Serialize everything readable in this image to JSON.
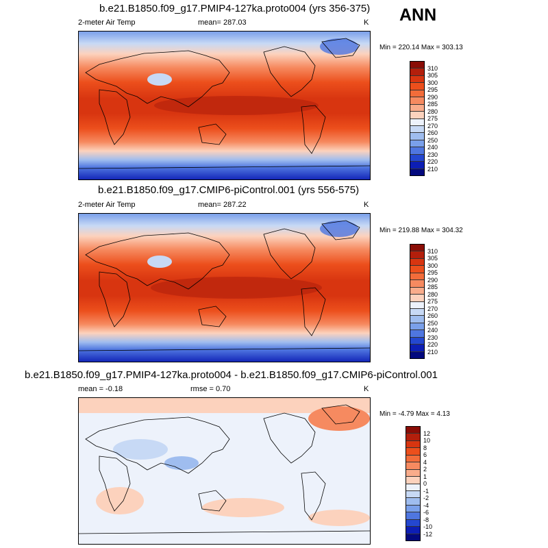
{
  "season": "ANN",
  "panels": [
    {
      "title": "b.e21.B1850.f09_g17.PMIP4-127ka.proto004 (yrs 356-375)",
      "left_label": "2-meter Air Temp",
      "center_label": "mean= 287.03",
      "units": "K",
      "minmax": "Min = 220.14 Max = 303.13",
      "colorbar_labels": [
        "310",
        "305",
        "300",
        "295",
        "290",
        "285",
        "280",
        "275",
        "270",
        "260",
        "250",
        "240",
        "230",
        "220",
        "210"
      ],
      "colorbar_colors": [
        "#8a0d06",
        "#b31f0c",
        "#d83510",
        "#ec4f1c",
        "#f26c3a",
        "#f68a60",
        "#f9ac8b",
        "#fcd2bd",
        "#edf2fb",
        "#c7d9f5",
        "#9fbdef",
        "#7aa0ea",
        "#4f76e0",
        "#2447d0",
        "#0d1eb4",
        "#03097e"
      ]
    },
    {
      "title": "b.e21.B1850.f09_g17.CMIP6-piControl.001 (yrs 556-575)",
      "left_label": "2-meter Air Temp",
      "center_label": "mean= 287.22",
      "units": "K",
      "minmax": "Min = 219.88 Max = 304.32",
      "colorbar_labels": [
        "310",
        "305",
        "300",
        "295",
        "290",
        "285",
        "280",
        "275",
        "270",
        "260",
        "250",
        "240",
        "230",
        "220",
        "210"
      ],
      "colorbar_colors": [
        "#8a0d06",
        "#b31f0c",
        "#d83510",
        "#ec4f1c",
        "#f26c3a",
        "#f68a60",
        "#f9ac8b",
        "#fcd2bd",
        "#edf2fb",
        "#c7d9f5",
        "#9fbdef",
        "#7aa0ea",
        "#4f76e0",
        "#2447d0",
        "#0d1eb4",
        "#03097e"
      ]
    },
    {
      "title": "b.e21.B1850.f09_g17.PMIP4-127ka.proto004 - b.e21.B1850.f09_g17.CMIP6-piControl.001",
      "left_label": "mean =  -0.18",
      "center_label": "rmse =   0.70",
      "units": "K",
      "minmax": "Min =  -4.79 Max =   4.13",
      "colorbar_labels": [
        "12",
        "10",
        "8",
        "6",
        "4",
        "2",
        "1",
        "0",
        "-1",
        "-2",
        "-4",
        "-6",
        "-8",
        "-10",
        "-12"
      ],
      "colorbar_colors": [
        "#8a0d06",
        "#b31f0c",
        "#d83510",
        "#ec4f1c",
        "#f26c3a",
        "#f68a60",
        "#f9ac8b",
        "#fcd2bd",
        "#edf2fb",
        "#c7d9f5",
        "#9fbdef",
        "#7aa0ea",
        "#4f76e0",
        "#2447d0",
        "#0d1eb4",
        "#03097e"
      ]
    }
  ]
}
